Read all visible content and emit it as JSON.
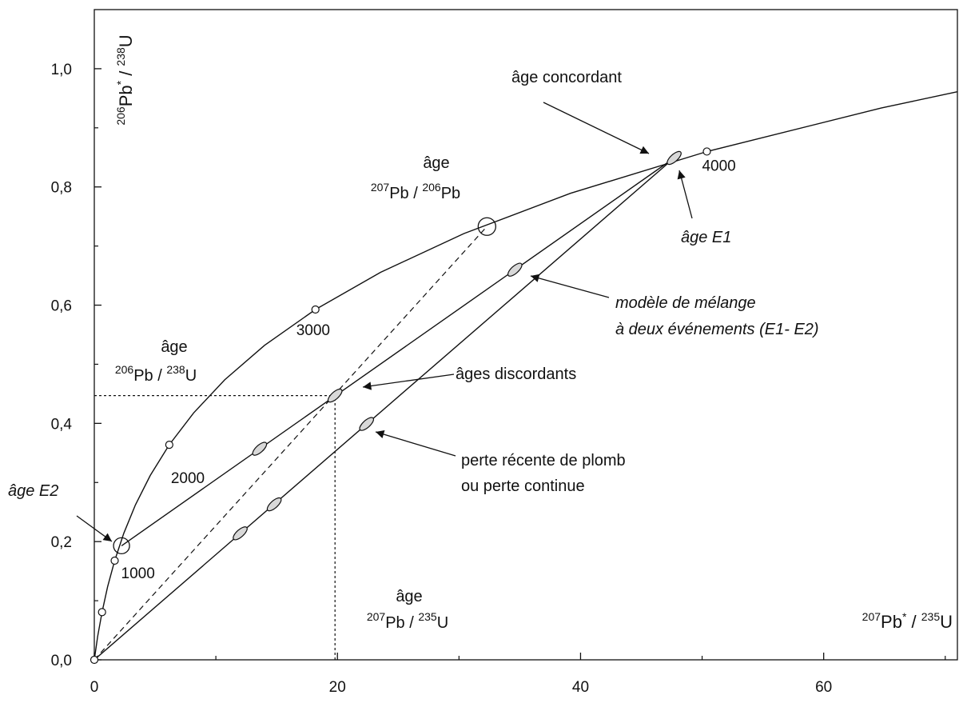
{
  "chart_data": {
    "type": "concordia",
    "xlim": [
      0,
      71
    ],
    "ylim": [
      0,
      1.1
    ],
    "xticks": [
      0,
      20,
      40,
      60
    ],
    "xminorticks": [
      10,
      30,
      50,
      70
    ],
    "yticks": [
      {
        "value": 0,
        "label": "0,0"
      },
      {
        "value": 0.2,
        "label": "0,2"
      },
      {
        "value": 0.4,
        "label": "0,4"
      },
      {
        "value": 0.6,
        "label": "0,6"
      },
      {
        "value": 0.8,
        "label": "0,8"
      },
      {
        "value": 1.0,
        "label": "1,0"
      }
    ],
    "yminorticks": [
      0.1,
      0.3,
      0.5,
      0.7,
      0.9
    ],
    "xlabel": [
      {
        "text": "207",
        "sup": true
      },
      {
        "text": "Pb"
      },
      {
        "text": "*",
        "sup": true
      },
      {
        "text": " / "
      },
      {
        "text": "235",
        "sup": true
      },
      {
        "text": "U"
      }
    ],
    "ylabel": [
      {
        "text": "206",
        "sup": true
      },
      {
        "text": "Pb"
      },
      {
        "text": "*",
        "sup": true
      },
      {
        "text": " / "
      },
      {
        "text": "238",
        "sup": true
      },
      {
        "text": "U"
      }
    ],
    "concordia": {
      "x": [
        0,
        0.2792,
        0.6362,
        1.093,
        1.6774,
        2.425,
        3.381,
        4.604,
        6.169,
        8.17,
        10.73,
        14.005,
        18.19,
        23.55,
        30.41,
        39.17,
        50.39,
        64.73,
        71
      ],
      "y": [
        0,
        0.03954,
        0.08065,
        0.1234,
        0.1678,
        0.214,
        0.262,
        0.3119,
        0.3638,
        0.4177,
        0.4737,
        0.532,
        0.5926,
        0.6556,
        0.7211,
        0.7892,
        0.8599,
        0.9335,
        0.961
      ]
    },
    "age_markers": {
      "x": [
        0,
        0.6362,
        1.6774,
        6.169,
        18.19,
        50.39
      ],
      "y": [
        0,
        0.08065,
        0.1678,
        0.3638,
        0.5926,
        0.8599
      ],
      "labels": [
        null,
        null,
        "1000",
        "2000",
        "3000",
        "4000"
      ]
    },
    "large_points": {
      "x": [
        2.24,
        32.3
      ],
      "y": [
        0.193,
        0.733
      ]
    },
    "analyses": {
      "x": [
        47.7,
        13.6,
        19.8,
        34.6,
        12,
        14.8,
        22.4
      ],
      "y": [
        0.849,
        0.357,
        0.447,
        0.66,
        0.214,
        0.263,
        0.399
      ]
    },
    "lines": [
      {
        "style": "solid",
        "x": [
          2.24,
          47.7
        ],
        "y": [
          0.193,
          0.849
        ]
      },
      {
        "style": "solid",
        "x": [
          0,
          47.7
        ],
        "y": [
          0,
          0.849
        ]
      },
      {
        "style": "dashed",
        "x": [
          0,
          32.3
        ],
        "y": [
          0,
          0.733
        ]
      },
      {
        "style": "dotted",
        "x": [
          0,
          19.8
        ],
        "y": [
          0.447,
          0.447
        ]
      },
      {
        "style": "dotted",
        "x": [
          19.8,
          19.8
        ],
        "y": [
          0,
          0.447
        ]
      }
    ],
    "annotations": [
      "âge concordant",
      "âge",
      [
        {
          "text": "207",
          "sup": true
        },
        {
          "text": "Pb / "
        },
        {
          "text": "206",
          "sup": true
        },
        {
          "text": "Pb"
        }
      ],
      "âge E1",
      "modèle de mélange",
      "à deux événements (E1- E2)",
      "âge",
      [
        {
          "text": "206",
          "sup": true
        },
        {
          "text": "Pb / "
        },
        {
          "text": "238",
          "sup": true
        },
        {
          "text": "U"
        }
      ],
      "âges discordants",
      "perte récente de plomb",
      "ou perte continue",
      "âge E2",
      "âge",
      [
        {
          "text": "207",
          "sup": true
        },
        {
          "text": "Pb / "
        },
        {
          "text": "235",
          "sup": true
        },
        {
          "text": "U"
        }
      ]
    ]
  }
}
